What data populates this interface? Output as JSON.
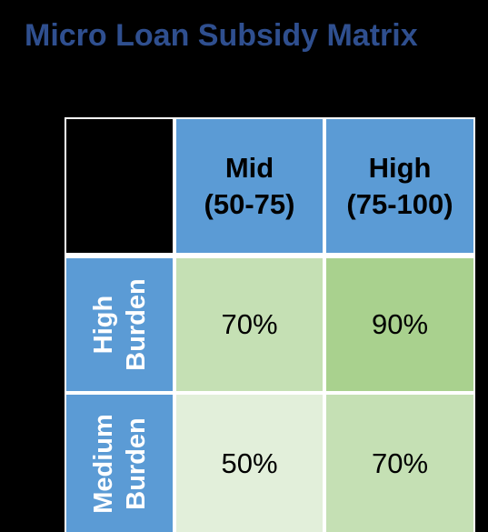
{
  "title": "Micro Loan Subsidy Matrix",
  "columns": [
    {
      "line1": "Mid",
      "line2": "(50-75)"
    },
    {
      "line1": "High",
      "line2": "(75-100)"
    }
  ],
  "rows": [
    {
      "line1": "High",
      "line2": "Burden",
      "values": [
        "70%",
        "90%"
      ]
    },
    {
      "line1": "Medium",
      "line2": "Burden",
      "values": [
        "50%",
        "70%"
      ]
    }
  ],
  "colors": {
    "title": "#2F4F8F",
    "header_fill": "#5B9BD5",
    "cell_light": "#E2EFDA",
    "cell_mid": "#C5E0B4",
    "cell_dark": "#A9D18E",
    "background": "#000000"
  }
}
